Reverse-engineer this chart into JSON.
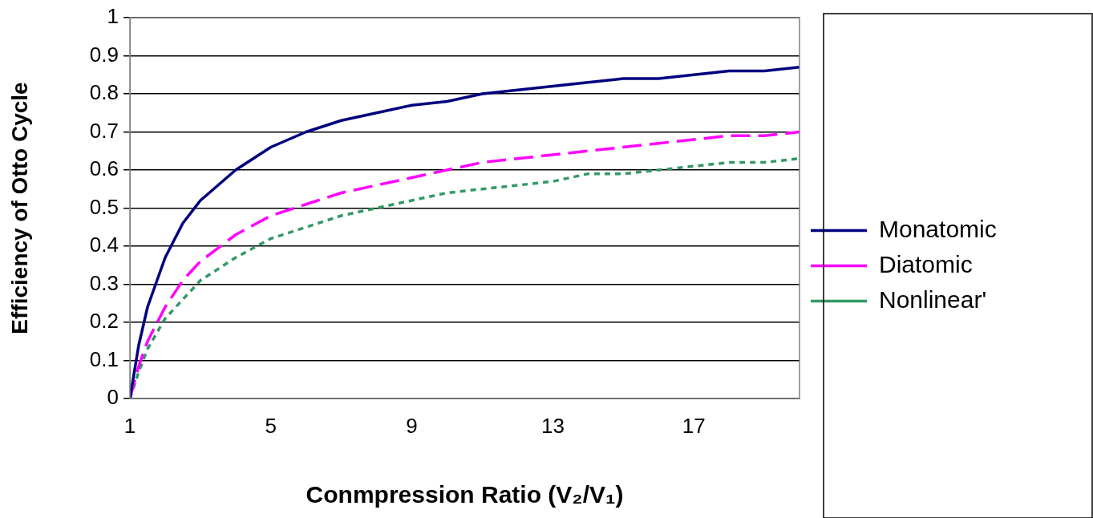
{
  "chart_data": {
    "type": "line",
    "xlabel": "Conmpression Ratio (V₂/V₁)",
    "ylabel": "Efficiency of Otto Cycle",
    "x": [
      1,
      1.25,
      1.5,
      2,
      2.5,
      3,
      4,
      5,
      6,
      7,
      8,
      9,
      10,
      11,
      12,
      13,
      14,
      15,
      16,
      17,
      18,
      19,
      20
    ],
    "xlim": [
      1,
      20
    ],
    "xticks": [
      1,
      5,
      9,
      13,
      17
    ],
    "ylim": [
      0,
      1
    ],
    "yticks": [
      0,
      0.1,
      0.2,
      0.3,
      0.4,
      0.5,
      0.6,
      0.7,
      0.8,
      0.9,
      1
    ],
    "grid": "y",
    "legend": "right",
    "marker": "none",
    "series": [
      {
        "name": "Monatomic",
        "color": "#000080",
        "line_style": "solid",
        "values": [
          0,
          0.14,
          0.24,
          0.37,
          0.46,
          0.52,
          0.6,
          0.66,
          0.7,
          0.73,
          0.75,
          0.77,
          0.78,
          0.8,
          0.81,
          0.82,
          0.83,
          0.84,
          0.84,
          0.85,
          0.86,
          0.86,
          0.87
        ]
      },
      {
        "name": "Diatomic",
        "color": "#ff00ff",
        "line_style": "dashed",
        "values": [
          0,
          0.085,
          0.15,
          0.24,
          0.31,
          0.36,
          0.43,
          0.48,
          0.51,
          0.54,
          0.56,
          0.58,
          0.6,
          0.62,
          0.63,
          0.64,
          0.65,
          0.66,
          0.67,
          0.68,
          0.69,
          0.69,
          0.7
        ]
      },
      {
        "name": "Nonlinear'",
        "color": "#339966",
        "line_style": "dotted",
        "values": [
          0,
          0.07,
          0.13,
          0.21,
          0.26,
          0.31,
          0.37,
          0.42,
          0.45,
          0.48,
          0.5,
          0.52,
          0.54,
          0.55,
          0.56,
          0.57,
          0.59,
          0.59,
          0.6,
          0.61,
          0.62,
          0.62,
          0.63
        ]
      }
    ]
  }
}
